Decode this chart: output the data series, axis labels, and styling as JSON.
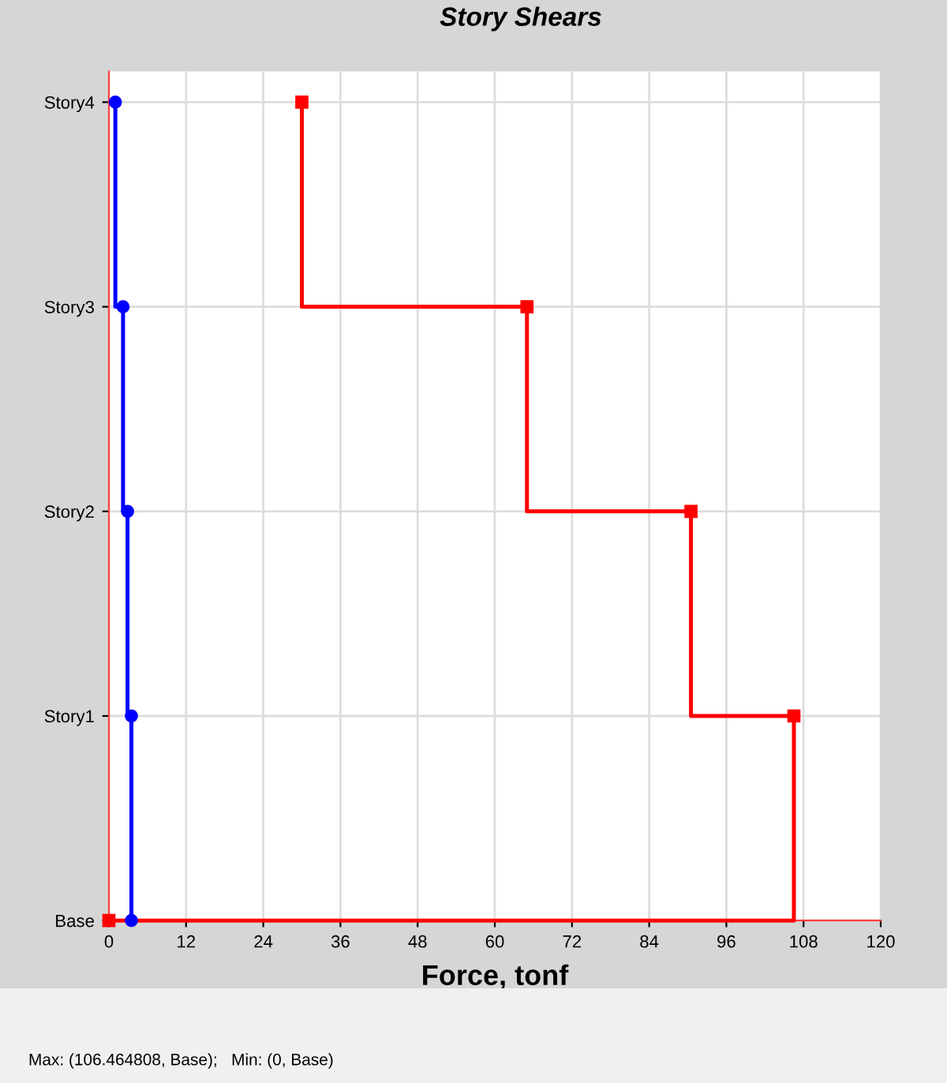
{
  "chart_data": {
    "type": "step",
    "orientation": "horizontal",
    "title": "Story Shears",
    "xlabel": "Force, tonf",
    "annotations": [
      "Max: (106.464808, Base);   Min: (0, Base)"
    ],
    "categories": [
      "Story4",
      "Story3",
      "Story2",
      "Story1",
      "Base"
    ],
    "series": [
      {
        "color": "#ff0000",
        "marker": "square",
        "values": [
          30.0,
          65.0,
          90.5,
          106.5,
          0
        ]
      },
      {
        "color": "#0000ff",
        "marker": "circle",
        "values": [
          1.0,
          2.2,
          2.9,
          3.5,
          3.5
        ]
      }
    ],
    "xlim": [
      0,
      120
    ],
    "xticks": [
      0,
      12,
      24,
      36,
      48,
      60,
      72,
      84,
      96,
      108,
      120
    ],
    "grid": true,
    "line_style": "solid"
  }
}
